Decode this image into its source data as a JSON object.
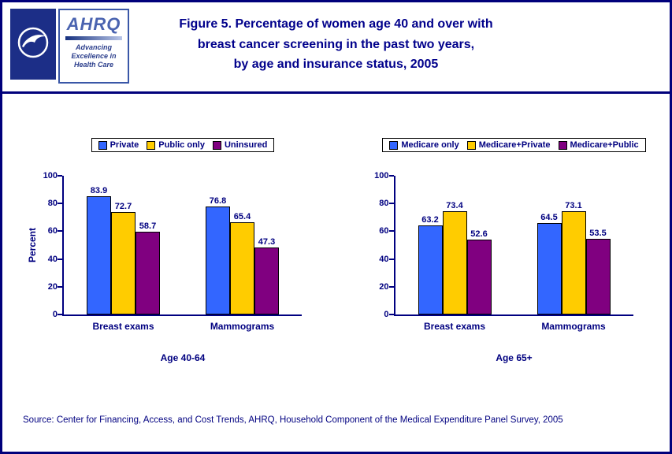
{
  "header": {
    "title_lines": [
      "Figure 5. Percentage of women age 40 and over with",
      "breast cancer screening in the past two years,",
      "by age and insurance status, 2005"
    ],
    "logos": {
      "ahrq_acronym": "AHRQ",
      "ahrq_tagline_lines": [
        "Advancing",
        "Excellence in",
        "Health Care"
      ]
    }
  },
  "source_note": "Source: Center for Financing, Access, and Cost Trends, AHRQ, Household Component of the Medical Expenditure Panel Survey, 2005",
  "colors": {
    "accent_navy": "#000080",
    "bar_blue": "#3366FF",
    "bar_yellow": "#FFCC00",
    "bar_purple": "#800080"
  },
  "chart_data": [
    {
      "type": "bar",
      "title": "Age 40-64",
      "categories": [
        "Breast exams",
        "Mammograms"
      ],
      "series": [
        {
          "name": "Private",
          "color": "#3366FF",
          "values": [
            83.9,
            76.8
          ]
        },
        {
          "name": "Public only",
          "color": "#FFCC00",
          "values": [
            72.7,
            65.4
          ]
        },
        {
          "name": "Uninsured",
          "color": "#800080",
          "values": [
            58.7,
            47.3
          ]
        }
      ],
      "xlabel": "",
      "ylabel": "Percent",
      "ylim": [
        0,
        100
      ],
      "yticks": [
        0,
        20,
        40,
        60,
        80,
        100
      ],
      "grid": false,
      "legend_position": "top"
    },
    {
      "type": "bar",
      "title": "Age 65+",
      "categories": [
        "Breast exams",
        "Mammograms"
      ],
      "series": [
        {
          "name": "Medicare only",
          "color": "#3366FF",
          "values": [
            63.2,
            64.5
          ]
        },
        {
          "name": "Medicare+Private",
          "color": "#FFCC00",
          "values": [
            73.4,
            73.1
          ]
        },
        {
          "name": "Medicare+Public",
          "color": "#800080",
          "values": [
            52.6,
            53.5
          ]
        }
      ],
      "xlabel": "",
      "ylabel": "",
      "ylim": [
        0,
        100
      ],
      "yticks": [
        0,
        20,
        40,
        60,
        80,
        100
      ],
      "grid": false,
      "legend_position": "top"
    }
  ]
}
